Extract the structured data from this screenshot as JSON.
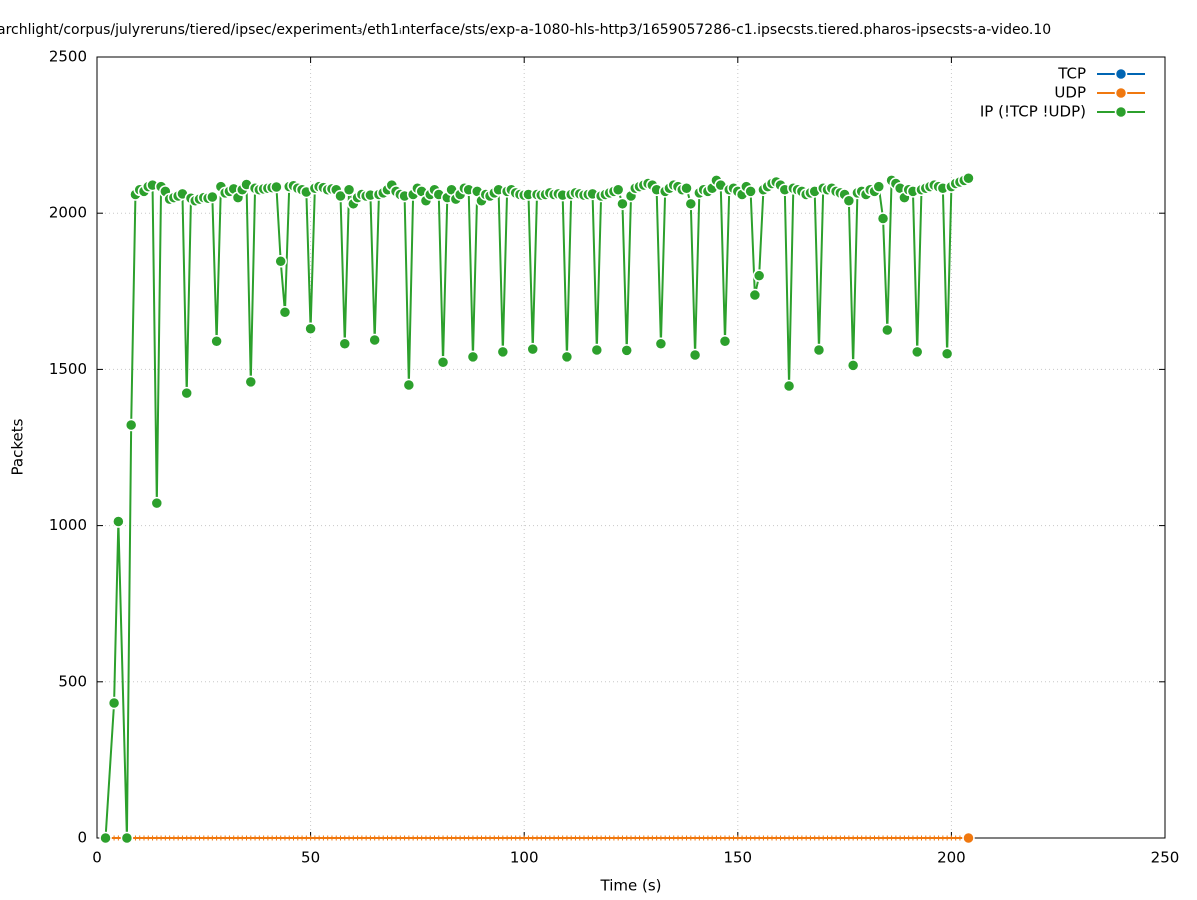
{
  "chart_data": {
    "type": "line",
    "title": "archlight/corpus/julyreruns/tiered/ipsec/experiment₃/eth1ᵢnterface/sts/exp-a-1080-hls-http3/1659057286-c1.ipsecsts.tiered.pharos-ipsecsts-a-video.10",
    "xlabel": "Time (s)",
    "ylabel": "Packets",
    "xlim": [
      0,
      250
    ],
    "ylim": [
      0,
      2500
    ],
    "xticks": [
      0,
      50,
      100,
      150,
      200,
      250
    ],
    "yticks": [
      0,
      500,
      1000,
      1500,
      2000,
      2500
    ],
    "grid": true,
    "legend": "upper right",
    "x": [
      2,
      4,
      5,
      7,
      8,
      9,
      10,
      11,
      12,
      13,
      14,
      15,
      16,
      17,
      18,
      19,
      20,
      21,
      22,
      23,
      24,
      25,
      26,
      27,
      28,
      29,
      30,
      31,
      32,
      33,
      34,
      35,
      36,
      37,
      38,
      39,
      40,
      41,
      42,
      43,
      44,
      45,
      46,
      47,
      48,
      49,
      50,
      51,
      52,
      53,
      54,
      55,
      56,
      57,
      58,
      59,
      60,
      61,
      62,
      63,
      64,
      65,
      66,
      67,
      68,
      69,
      70,
      71,
      72,
      73,
      74,
      75,
      76,
      77,
      78,
      79,
      80,
      81,
      82,
      83,
      84,
      85,
      86,
      87,
      88,
      89,
      90,
      91,
      92,
      93,
      94,
      95,
      96,
      97,
      98,
      99,
      100,
      101,
      102,
      103,
      104,
      105,
      106,
      107,
      108,
      109,
      110,
      111,
      112,
      113,
      114,
      115,
      116,
      117,
      118,
      119,
      120,
      121,
      122,
      123,
      124,
      125,
      126,
      127,
      128,
      129,
      130,
      131,
      132,
      133,
      134,
      135,
      136,
      137,
      138,
      139,
      140,
      141,
      142,
      143,
      144,
      145,
      146,
      147,
      148,
      149,
      150,
      151,
      152,
      153,
      154,
      155,
      156,
      157,
      158,
      159,
      160,
      161,
      162,
      163,
      164,
      165,
      166,
      167,
      168,
      169,
      170,
      171,
      172,
      173,
      174,
      175,
      176,
      177,
      178,
      179,
      180,
      181,
      182,
      183,
      184,
      185,
      186,
      187,
      188,
      189,
      190,
      191,
      192,
      193,
      194,
      195,
      196,
      197,
      198,
      199,
      200,
      201,
      202,
      203,
      204
    ],
    "series": [
      {
        "name": "TCP",
        "color": "#0065b3"
      },
      {
        "name": "UDP",
        "color": "#f0780f",
        "values": [
          0,
          0,
          0,
          0,
          0,
          0,
          0,
          0,
          0,
          0,
          0,
          0,
          0,
          0,
          0,
          0,
          0,
          0,
          0,
          0,
          0,
          0,
          0,
          0,
          0,
          0,
          0,
          0,
          0,
          0,
          0,
          0,
          0,
          0,
          0,
          0,
          0,
          0,
          0,
          0,
          0,
          0,
          0,
          0,
          0,
          0,
          0,
          0,
          0,
          0,
          0,
          0,
          0,
          0,
          0,
          0,
          0,
          0,
          0,
          0,
          0,
          0,
          0,
          0,
          0,
          0,
          0,
          0,
          0,
          0,
          0,
          0,
          0,
          0,
          0,
          0,
          0,
          0,
          0,
          0,
          0,
          0,
          0,
          0,
          0,
          0,
          0,
          0,
          0,
          0,
          0,
          0,
          0,
          0,
          0,
          0,
          0,
          0,
          0,
          0,
          0,
          0,
          0,
          0,
          0,
          0,
          0,
          0,
          0,
          0,
          0,
          0,
          0,
          0,
          0,
          0,
          0,
          0,
          0,
          0,
          0,
          0,
          0,
          0,
          0,
          0,
          0,
          0,
          0,
          0,
          0,
          0,
          0,
          0,
          0,
          0,
          0,
          0,
          0,
          0,
          0,
          0,
          0,
          0,
          0,
          0,
          0,
          0,
          0,
          0,
          0,
          0,
          0,
          0,
          0,
          0,
          0,
          0,
          0,
          0,
          0,
          0,
          0,
          0,
          0,
          0,
          0,
          0,
          0,
          0,
          0,
          0,
          0,
          0,
          0,
          0,
          0,
          0,
          0,
          0,
          0,
          0,
          0,
          0,
          0,
          0,
          0,
          0,
          0,
          0,
          0,
          0,
          0,
          0,
          0,
          0,
          0,
          0,
          0,
          0,
          0
        ]
      },
      {
        "name": "IP (!TCP  !UDP)",
        "color": "#2ca02c",
        "values": [
          0,
          432,
          1013,
          0,
          1322,
          2060,
          2075,
          2070,
          2085,
          2090,
          1072,
          2085,
          2070,
          2045,
          2050,
          2055,
          2062,
          1424,
          2048,
          2040,
          2045,
          2050,
          2048,
          2052,
          1590,
          2085,
          2065,
          2070,
          2078,
          2050,
          2075,
          2092,
          1460,
          2080,
          2075,
          2078,
          2080,
          2082,
          2084,
          1846,
          1683,
          2085,
          2088,
          2080,
          2075,
          2068,
          1630,
          2080,
          2085,
          2082,
          2075,
          2078,
          2075,
          2055,
          1582,
          2075,
          2030,
          2050,
          2060,
          2055,
          2058,
          1594,
          2060,
          2065,
          2075,
          2090,
          2070,
          2060,
          2055,
          1450,
          2060,
          2080,
          2070,
          2040,
          2060,
          2075,
          2060,
          1523,
          2050,
          2075,
          2045,
          2060,
          2080,
          2075,
          1540,
          2070,
          2040,
          2060,
          2055,
          2065,
          2075,
          1556,
          2070,
          2075,
          2065,
          2060,
          2058,
          2060,
          1565,
          2060,
          2058,
          2060,
          2065,
          2060,
          2062,
          2058,
          1540,
          2060,
          2065,
          2062,
          2058,
          2060,
          2062,
          1562,
          2055,
          2060,
          2065,
          2070,
          2075,
          2030,
          1561,
          2055,
          2080,
          2085,
          2090,
          2095,
          2090,
          2075,
          1582,
          2070,
          2080,
          2090,
          2085,
          2075,
          2080,
          2030,
          1546,
          2065,
          2075,
          2070,
          2080,
          2105,
          2090,
          1590,
          2075,
          2080,
          2070,
          2060,
          2085,
          2070,
          1738,
          1800,
          2075,
          2085,
          2095,
          2100,
          2090,
          2075,
          1447,
          2080,
          2075,
          2070,
          2060,
          2065,
          2070,
          1562,
          2080,
          2075,
          2080,
          2070,
          2065,
          2060,
          2040,
          1513,
          2065,
          2070,
          2060,
          2075,
          2070,
          2085,
          1983,
          1626,
          2105,
          2095,
          2080,
          2050,
          2075,
          2070,
          1556,
          2075,
          2080,
          2085,
          2090,
          2085,
          2080,
          1550,
          2085,
          2095,
          2100,
          2105,
          2112
        ]
      }
    ]
  }
}
